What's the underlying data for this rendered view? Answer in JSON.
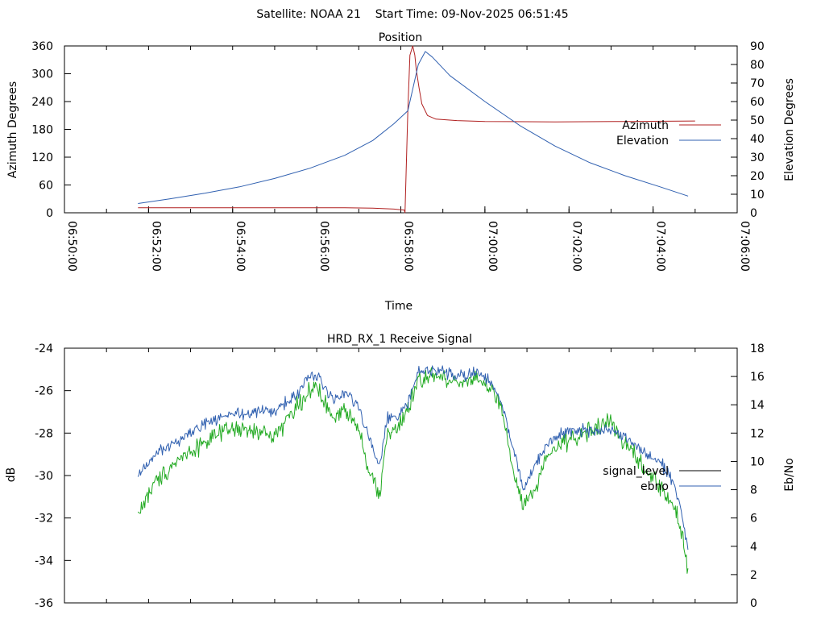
{
  "header": {
    "satellite_text": "Satellite: NOAA 21",
    "start_time_text": "Start Time: 09-Nov-2025 06:51:45"
  },
  "colors": {
    "azimuth": "#b02020",
    "elevation": "#3060b0",
    "signal_level": "#22aa22",
    "ebno": "#3060b0",
    "legend_signal_level": "#000000",
    "axes": "#000000"
  },
  "chart_data": [
    {
      "type": "line",
      "title": "Position",
      "xlabel": "Time",
      "ylabel": "Azimuth Degrees",
      "y2label": "Elevation Degrees",
      "xlim": [
        0,
        960
      ],
      "ylim": [
        0,
        360
      ],
      "y2lim": [
        0,
        90
      ],
      "x_unit": "minutes from 06:50:00",
      "xticks": [
        {
          "x": 0,
          "label": "06:50:00"
        },
        {
          "x": 120,
          "label": "06:52:00"
        },
        {
          "x": 240,
          "label": "06:54:00"
        },
        {
          "x": 360,
          "label": "06:56:00"
        },
        {
          "x": 480,
          "label": "06:58:00"
        },
        {
          "x": 600,
          "label": "07:00:00"
        },
        {
          "x": 720,
          "label": "07:02:00"
        },
        {
          "x": 840,
          "label": "07:04:00"
        },
        {
          "x": 960,
          "label": "07:06:00"
        }
      ],
      "x_minor_step": 60,
      "yticks": [
        0,
        60,
        120,
        180,
        240,
        300,
        360
      ],
      "y2ticks": [
        0,
        10,
        20,
        30,
        40,
        50,
        60,
        70,
        80,
        90
      ],
      "legend": [
        "Azimuth",
        "Elevation"
      ],
      "legend_position": "right",
      "series": [
        {
          "name": "Azimuth",
          "axis": "y",
          "color_key": "azimuth",
          "points": [
            [
              105,
              11
            ],
            [
              200,
              11
            ],
            [
              300,
              11
            ],
            [
              400,
              11
            ],
            [
              440,
              10
            ],
            [
              470,
              8
            ],
            [
              485,
              6
            ],
            [
              486,
              0
            ],
            [
              490,
              220
            ],
            [
              493,
              340
            ],
            [
              497,
              360
            ],
            [
              500,
              340
            ],
            [
              502,
              310
            ],
            [
              506,
              270
            ],
            [
              510,
              235
            ],
            [
              518,
              210
            ],
            [
              530,
              202
            ],
            [
              560,
              199
            ],
            [
              600,
              197
            ],
            [
              700,
              196
            ],
            [
              800,
              197
            ],
            [
              900,
              198
            ]
          ]
        },
        {
          "name": "Elevation",
          "axis": "y2",
          "color_key": "elevation",
          "points": [
            [
              105,
              5
            ],
            [
              150,
              7.5
            ],
            [
              200,
              10.5
            ],
            [
              250,
              14
            ],
            [
              300,
              18.5
            ],
            [
              350,
              24
            ],
            [
              400,
              31
            ],
            [
              440,
              39
            ],
            [
              470,
              48
            ],
            [
              490,
              55
            ],
            [
              505,
              80
            ],
            [
              515,
              87
            ],
            [
              525,
              84
            ],
            [
              550,
              74
            ],
            [
              600,
              60
            ],
            [
              650,
              47
            ],
            [
              700,
              36
            ],
            [
              750,
              27
            ],
            [
              800,
              20
            ],
            [
              850,
              14
            ],
            [
              890,
              9
            ]
          ]
        }
      ]
    },
    {
      "type": "line",
      "title": "HRD_RX_1 Receive Signal",
      "xlabel": "",
      "ylabel": "dB",
      "y2label": "Eb/No",
      "xlim": [
        0,
        960
      ],
      "ylim": [
        -36,
        -24
      ],
      "y2lim": [
        0,
        18
      ],
      "yticks": [
        -36,
        -34,
        -32,
        -30,
        -28,
        -26,
        -24
      ],
      "y2ticks": [
        0,
        2,
        4,
        6,
        8,
        10,
        12,
        14,
        16,
        18
      ],
      "x_minor_step": 60,
      "legend": [
        "signal_level",
        "ebno"
      ],
      "legend_position": "right",
      "series": [
        {
          "name": "signal_level",
          "axis": "y",
          "color_key": "signal_level",
          "noise": 0.35,
          "points": [
            [
              105,
              -31.8
            ],
            [
              130,
              -30.3
            ],
            [
              160,
              -29.3
            ],
            [
              200,
              -28.4
            ],
            [
              240,
              -27.8
            ],
            [
              280,
              -28.0
            ],
            [
              300,
              -28.1
            ],
            [
              330,
              -26.8
            ],
            [
              355,
              -25.8
            ],
            [
              370,
              -26.5
            ],
            [
              385,
              -27.4
            ],
            [
              400,
              -26.8
            ],
            [
              420,
              -27.7
            ],
            [
              435,
              -29.8
            ],
            [
              450,
              -31.0
            ],
            [
              460,
              -28.0
            ],
            [
              475,
              -27.8
            ],
            [
              490,
              -27.0
            ],
            [
              505,
              -25.5
            ],
            [
              525,
              -25.3
            ],
            [
              560,
              -25.6
            ],
            [
              590,
              -25.4
            ],
            [
              610,
              -26.0
            ],
            [
              625,
              -27.0
            ],
            [
              640,
              -29.8
            ],
            [
              655,
              -31.5
            ],
            [
              675,
              -30.5
            ],
            [
              690,
              -29.0
            ],
            [
              710,
              -28.5
            ],
            [
              730,
              -28.2
            ],
            [
              760,
              -27.7
            ],
            [
              780,
              -27.5
            ],
            [
              800,
              -28.5
            ],
            [
              830,
              -29.8
            ],
            [
              850,
              -30.5
            ],
            [
              870,
              -31.5
            ],
            [
              880,
              -32.5
            ],
            [
              890,
              -34.5
            ]
          ]
        },
        {
          "name": "ebno",
          "axis": "y2",
          "color_key": "ebno",
          "noise": 0.35,
          "points": [
            [
              105,
              9.0
            ],
            [
              130,
              10.5
            ],
            [
              160,
              11.4
            ],
            [
              200,
              12.7
            ],
            [
              240,
              13.3
            ],
            [
              280,
              13.5
            ],
            [
              300,
              13.6
            ],
            [
              330,
              14.6
            ],
            [
              355,
              16.2
            ],
            [
              370,
              15.3
            ],
            [
              385,
              14.3
            ],
            [
              400,
              15.0
            ],
            [
              420,
              13.8
            ],
            [
              435,
              11.5
            ],
            [
              450,
              9.5
            ],
            [
              460,
              13.0
            ],
            [
              475,
              13.0
            ],
            [
              490,
              14.2
            ],
            [
              505,
              16.3
            ],
            [
              525,
              16.5
            ],
            [
              560,
              16.0
            ],
            [
              590,
              16.3
            ],
            [
              610,
              15.5
            ],
            [
              625,
              14.0
            ],
            [
              640,
              11.0
            ],
            [
              655,
              8.0
            ],
            [
              675,
              10.0
            ],
            [
              690,
              11.2
            ],
            [
              710,
              12.0
            ],
            [
              730,
              12.3
            ],
            [
              760,
              12.2
            ],
            [
              780,
              12.3
            ],
            [
              800,
              11.8
            ],
            [
              830,
              10.5
            ],
            [
              850,
              10.0
            ],
            [
              870,
              8.5
            ],
            [
              880,
              6.5
            ],
            [
              890,
              3.8
            ]
          ]
        }
      ]
    }
  ]
}
